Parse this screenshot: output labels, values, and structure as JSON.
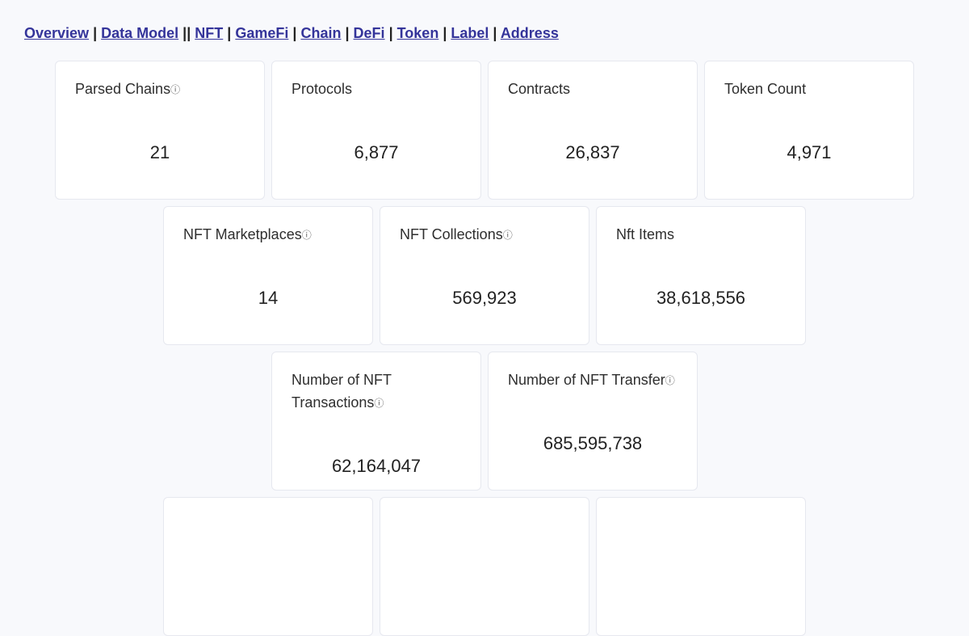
{
  "nav": {
    "links": [
      "Overview",
      "Data Model",
      "NFT",
      "GameFi",
      "Chain",
      "DeFi",
      "Token",
      "Label",
      "Address"
    ],
    "separators": [
      "|",
      "||",
      "|",
      "|",
      "|",
      "|",
      "|",
      "|"
    ]
  },
  "cards": {
    "parsed_chains": {
      "label": "Parsed Chains",
      "value": "21"
    },
    "protocols": {
      "label": "Protocols",
      "value": "6,877"
    },
    "contracts": {
      "label": "Contracts",
      "value": "26,837"
    },
    "token_count": {
      "label": "Token Count",
      "value": "4,971"
    },
    "nft_marketplaces": {
      "label": "NFT Marketplaces",
      "value": "14"
    },
    "nft_collections": {
      "label": "NFT Collections",
      "value": "569,923"
    },
    "nft_items": {
      "label": "Nft Items",
      "value": "38,618,556"
    },
    "nft_transactions": {
      "label": "Number of NFT Transactions",
      "value": "62,164,047"
    },
    "nft_transfer": {
      "label": "Number of NFT Transfer",
      "value": "685,595,738"
    }
  },
  "icons": {
    "info_glyph": "ⓘ"
  }
}
